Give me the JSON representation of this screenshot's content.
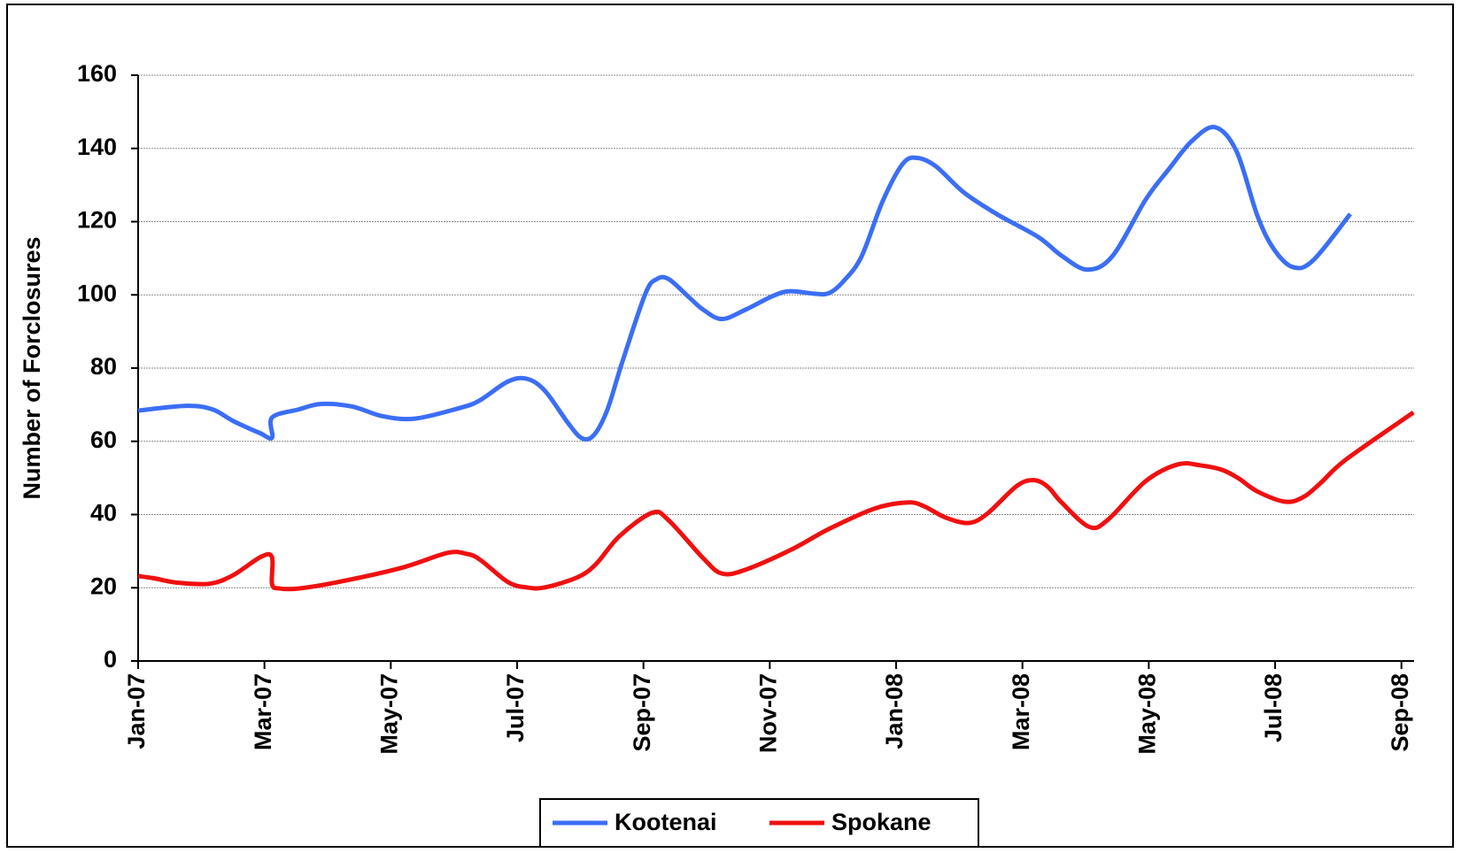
{
  "chart_data": {
    "type": "line",
    "ylabel": "Number of Forclosures",
    "xlim": [
      0,
      20.2
    ],
    "xticks": [
      {
        "value": 0,
        "label": "Jan-07"
      },
      {
        "value": 2,
        "label": "Mar-07"
      },
      {
        "value": 4,
        "label": "May-07"
      },
      {
        "value": 6,
        "label": "Jul-07"
      },
      {
        "value": 8,
        "label": "Sep-07"
      },
      {
        "value": 10,
        "label": "Nov-07"
      },
      {
        "value": 12,
        "label": "Jan-08"
      },
      {
        "value": 14,
        "label": "Mar-08"
      },
      {
        "value": 16,
        "label": "May-08"
      },
      {
        "value": 18,
        "label": "Jul-08"
      },
      {
        "value": 20,
        "label": "Sep-08"
      }
    ],
    "ylim": [
      0,
      160
    ],
    "yticks": [
      0,
      20,
      40,
      60,
      80,
      100,
      120,
      140,
      160
    ],
    "grid": true,
    "legend": "bottom",
    "series": [
      {
        "name": "Kootenai",
        "color": "#3b6ef5",
        "x": [
          0,
          0.77,
          1.18,
          1.5,
          1.92,
          2.12,
          2.12,
          2.54,
          2.9,
          3.39,
          3.86,
          4.38,
          5.11,
          5.41,
          5.85,
          6.15,
          6.44,
          6.81,
          7.03,
          7.22,
          7.43,
          7.66,
          8.03,
          8.21,
          8.4,
          8.73,
          8.95,
          9.24,
          9.61,
          10.05,
          10.32,
          10.72,
          10.94,
          11.16,
          11.45,
          11.79,
          12.11,
          12.34,
          12.63,
          13.07,
          13.59,
          14.25,
          14.62,
          15.03,
          15.43,
          15.95,
          16.32,
          16.68,
          17.05,
          17.39,
          17.72,
          17.98,
          18.28,
          18.6,
          19.19
        ],
        "values": [
          68.4,
          69.7,
          68.7,
          65.6,
          62.3,
          61,
          66.5,
          68.7,
          70.2,
          69.5,
          66.9,
          66.2,
          69.2,
          71.2,
          76.3,
          77.1,
          73.8,
          64.9,
          60.8,
          61.8,
          68.7,
          81.4,
          100.3,
          104.3,
          104.3,
          99.2,
          95.9,
          93.4,
          95.9,
          99.7,
          101,
          100.3,
          100.5,
          103.6,
          110.4,
          125.7,
          135.9,
          137.4,
          135.1,
          128,
          122.1,
          115.8,
          110.7,
          106.9,
          110.7,
          126,
          134.4,
          142,
          145.8,
          139.2,
          121.6,
          112.5,
          107.6,
          109.4,
          122.1
        ]
      },
      {
        "name": "Spokane",
        "color": "#f01010",
        "x": [
          0,
          0.25,
          0.62,
          1.13,
          1.5,
          1.95,
          2.12,
          2.12,
          2.24,
          2.54,
          3.12,
          4.16,
          4.89,
          5.19,
          5.41,
          5.85,
          6.15,
          6.44,
          6.96,
          7.25,
          7.62,
          8.14,
          8.4,
          8.95,
          9.24,
          9.61,
          10.35,
          10.94,
          11.67,
          12.19,
          12.45,
          12.78,
          13.15,
          13.44,
          13.91,
          14.18,
          14.4,
          14.62,
          15.06,
          15.36,
          15.95,
          16.46,
          16.83,
          17.16,
          17.42,
          17.72,
          18.16,
          18.45,
          18.72,
          19.12,
          20.19
        ],
        "values": [
          23.2,
          22.6,
          21.4,
          21.1,
          23.4,
          28.5,
          28.3,
          21,
          19.8,
          19.8,
          21.4,
          25.4,
          29.5,
          29.3,
          27.7,
          21.6,
          20.1,
          20.1,
          22.9,
          26.5,
          34.1,
          40.5,
          38.4,
          28,
          23.9,
          24.9,
          30.5,
          36.1,
          41.7,
          43.3,
          42.2,
          39.2,
          37.7,
          40.2,
          47.8,
          49.4,
          47.6,
          43.3,
          36.6,
          38.7,
          49.1,
          53.7,
          53.4,
          52.2,
          49.9,
          46.3,
          43.5,
          44.8,
          48.6,
          55,
          67.9
        ]
      }
    ]
  }
}
